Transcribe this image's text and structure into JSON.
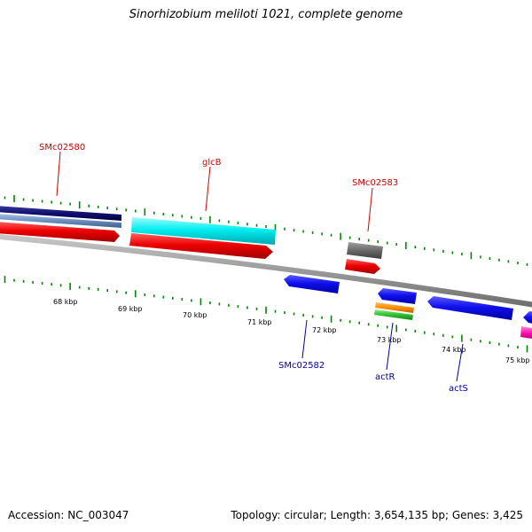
{
  "title": "Sinorhizobium meliloti 1021, complete genome",
  "footer": {
    "accession": "Accession: NC_003047",
    "stats": "Topology: circular; Length: 3,654,135 bp; Genes: 3,425"
  },
  "scale_labels": [
    "68 kbp",
    "69 kbp",
    "70 kbp",
    "71 kbp",
    "72 kbp",
    "73 kbp",
    "74 kbp",
    "75 kbp"
  ],
  "gene_labels": {
    "forward": [
      "SMc02580",
      "glcB",
      "SMc02583"
    ],
    "reverse": [
      "SMc02582",
      "actR",
      "actS"
    ]
  },
  "colors": {
    "forward_label": "#cc0000",
    "reverse_label": "#000099",
    "tick": "#008800",
    "backbone": "#888888"
  }
}
